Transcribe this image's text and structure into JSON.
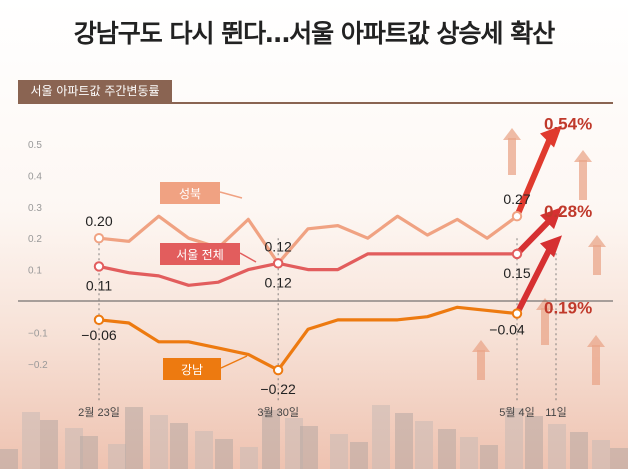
{
  "title": "강남구도 다시 뛴다…서울 아파트값 상승세 확산",
  "subtitle": "서울 아파트값 주간변동률",
  "chart_data": {
    "type": "line",
    "x": [
      "2월 23일",
      "",
      "",
      "",
      "",
      "",
      "3월 30일",
      "",
      "",
      "",
      "",
      "",
      "",
      "",
      "5월 4일",
      "11일"
    ],
    "ylim": [
      -0.3,
      0.6
    ],
    "y_ticks": [
      0.5,
      0.4,
      0.3,
      0.2,
      0.1,
      -0.1,
      -0.2
    ],
    "grid": false,
    "series": [
      {
        "name": "성북",
        "color": "#f0a282",
        "values": [
          0.2,
          0.19,
          0.27,
          0.2,
          0.17,
          0.26,
          0.12,
          0.23,
          0.24,
          0.2,
          0.27,
          0.21,
          0.26,
          0.2,
          0.27,
          0.54
        ],
        "labels": {
          "0": "0.20",
          "6": "0.12",
          "14": "0.27",
          "15": "0.54%"
        }
      },
      {
        "name": "서울 전체",
        "color": "#e25d5d",
        "values": [
          0.11,
          0.09,
          0.08,
          0.05,
          0.06,
          0.1,
          0.12,
          0.1,
          0.1,
          0.15,
          0.15,
          0.15,
          0.15,
          0.15,
          0.15,
          0.28
        ],
        "labels": {
          "0": "0.11",
          "6": "0.12",
          "14": "0.15",
          "15": "0.28%"
        }
      },
      {
        "name": "강남",
        "color": "#ed7a10",
        "values": [
          -0.06,
          -0.07,
          -0.13,
          -0.13,
          -0.15,
          -0.17,
          -0.22,
          -0.09,
          -0.06,
          -0.06,
          -0.06,
          -0.05,
          -0.02,
          -0.03,
          -0.04,
          0.19
        ],
        "labels": {
          "0": "−0.06",
          "6": "−0.22",
          "14": "−0.04",
          "15": "0.19%"
        }
      }
    ]
  }
}
